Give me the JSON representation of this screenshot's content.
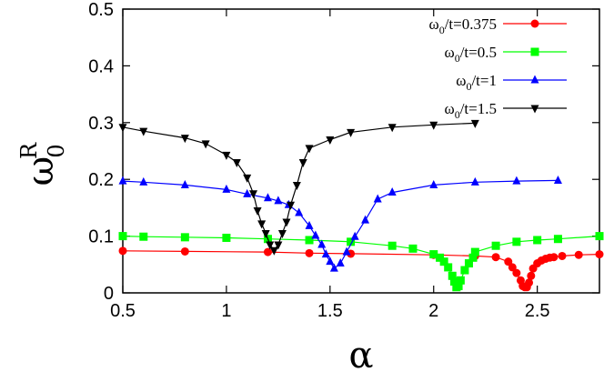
{
  "chart_data": {
    "type": "line",
    "xlabel": "α",
    "ylabel": {
      "main": "ω",
      "sub": "0",
      "sup": "R"
    },
    "xlim": [
      0.5,
      2.8
    ],
    "ylim": [
      0,
      0.5
    ],
    "xticks": [
      "0.5",
      "1",
      "1.5",
      "2",
      "2.5"
    ],
    "yticks": [
      "0",
      "0.1",
      "0.2",
      "0.3",
      "0.4",
      "0.5"
    ],
    "grid": false,
    "legend_position": "top-right",
    "series": [
      {
        "name": "ω0/t=0.375",
        "label_main": "ω",
        "label_sub": "0",
        "label_rest": "/t=0.375",
        "color": "#ff0000",
        "marker": "circle",
        "x": [
          0.5,
          0.8,
          1.2,
          1.4,
          1.6,
          2.0,
          2.2,
          2.3,
          2.36,
          2.38,
          2.4,
          2.42,
          2.43,
          2.44,
          2.45,
          2.46,
          2.47,
          2.48,
          2.5,
          2.52,
          2.54,
          2.56,
          2.58,
          2.62,
          2.7,
          2.8
        ],
        "y": [
          0.074,
          0.073,
          0.072,
          0.07,
          0.069,
          0.067,
          0.065,
          0.063,
          0.055,
          0.045,
          0.035,
          0.022,
          0.012,
          0.01,
          0.01,
          0.018,
          0.03,
          0.043,
          0.052,
          0.057,
          0.06,
          0.062,
          0.063,
          0.065,
          0.067,
          0.068
        ]
      },
      {
        "name": "ω0/t=0.5",
        "label_main": "ω",
        "label_sub": "0",
        "label_rest": "/t=0.5",
        "color": "#00ff00",
        "marker": "square",
        "x": [
          0.5,
          0.6,
          0.8,
          1.0,
          1.2,
          1.4,
          1.6,
          1.8,
          1.9,
          2.0,
          2.03,
          2.05,
          2.07,
          2.09,
          2.1,
          2.11,
          2.12,
          2.13,
          2.15,
          2.17,
          2.19,
          2.2,
          2.3,
          2.4,
          2.5,
          2.6,
          2.8
        ],
        "y": [
          0.1,
          0.099,
          0.098,
          0.097,
          0.095,
          0.093,
          0.09,
          0.083,
          0.078,
          0.068,
          0.062,
          0.055,
          0.045,
          0.03,
          0.02,
          0.01,
          0.012,
          0.022,
          0.04,
          0.052,
          0.062,
          0.072,
          0.083,
          0.09,
          0.093,
          0.095,
          0.1
        ]
      },
      {
        "name": "ω0/t=1",
        "label_main": "ω",
        "label_sub": "0",
        "label_rest": "/t=1",
        "color": "#0000ff",
        "marker": "triangle-up",
        "x": [
          0.5,
          0.6,
          0.8,
          1.0,
          1.1,
          1.2,
          1.25,
          1.3,
          1.35,
          1.4,
          1.43,
          1.46,
          1.48,
          1.5,
          1.52,
          1.55,
          1.58,
          1.62,
          1.67,
          1.73,
          1.8,
          2.0,
          2.2,
          2.4,
          2.6
        ],
        "y": [
          0.197,
          0.195,
          0.19,
          0.182,
          0.174,
          0.167,
          0.162,
          0.155,
          0.141,
          0.118,
          0.101,
          0.085,
          0.068,
          0.055,
          0.043,
          0.052,
          0.072,
          0.099,
          0.128,
          0.165,
          0.177,
          0.19,
          0.195,
          0.197,
          0.198
        ]
      },
      {
        "name": "ω0/t=1.5",
        "label_main": "ω",
        "label_sub": "0",
        "label_rest": "/t=1.5",
        "color": "#000000",
        "marker": "triangle-down",
        "x": [
          0.5,
          0.6,
          0.8,
          0.9,
          1.0,
          1.05,
          1.1,
          1.13,
          1.15,
          1.17,
          1.19,
          1.21,
          1.23,
          1.25,
          1.27,
          1.29,
          1.31,
          1.34,
          1.37,
          1.4,
          1.5,
          1.6,
          1.8,
          2.0,
          2.2
        ],
        "y": [
          0.292,
          0.285,
          0.273,
          0.263,
          0.243,
          0.23,
          0.203,
          0.175,
          0.145,
          0.122,
          0.105,
          0.085,
          0.075,
          0.085,
          0.105,
          0.125,
          0.155,
          0.19,
          0.23,
          0.255,
          0.27,
          0.283,
          0.292,
          0.296,
          0.299
        ]
      }
    ]
  }
}
